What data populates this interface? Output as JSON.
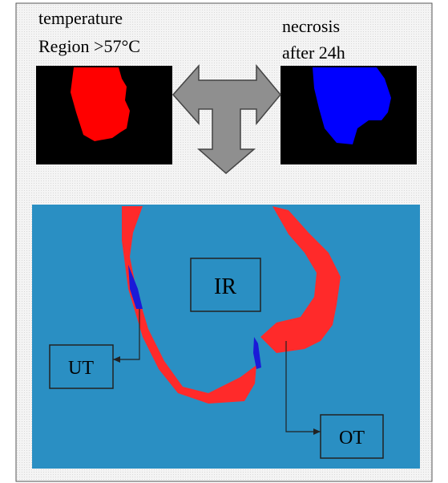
{
  "labels": {
    "temperature": [
      "temperature",
      "Region >57°C"
    ],
    "necrosis": [
      "necrosis",
      "after 24h"
    ]
  },
  "regions": [
    {
      "label": "IR"
    },
    {
      "label": "UT"
    },
    {
      "label": "OT"
    }
  ]
}
